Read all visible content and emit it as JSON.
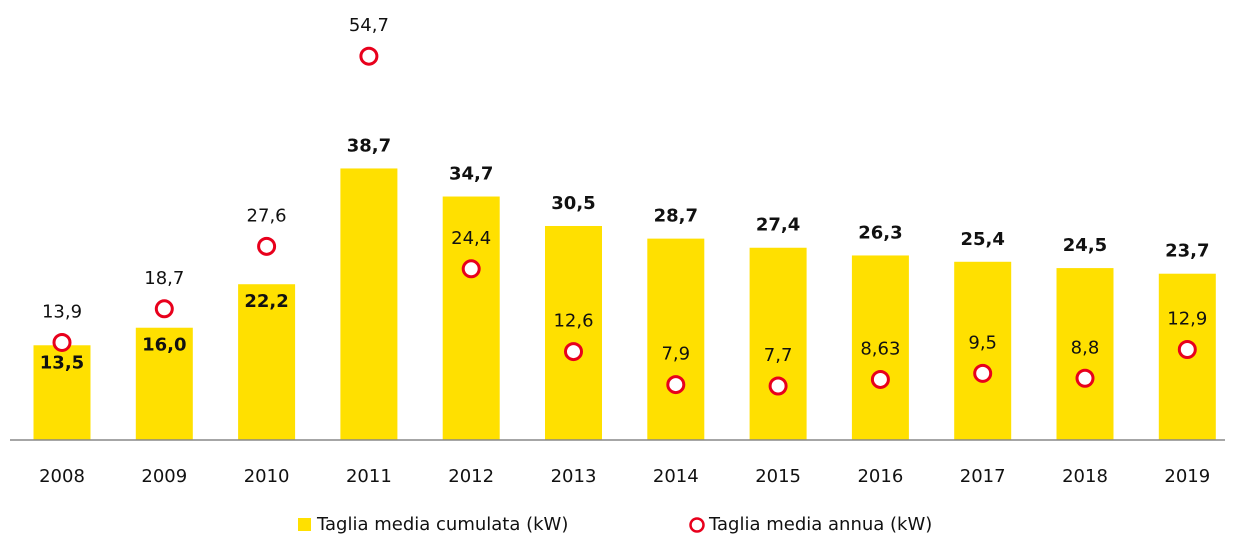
{
  "chart_data": {
    "type": "bar",
    "categories": [
      "2008",
      "2009",
      "2010",
      "2011",
      "2012",
      "2013",
      "2014",
      "2015",
      "2016",
      "2017",
      "2018",
      "2019"
    ],
    "series": [
      {
        "name": "Taglia media cumulata (kW)",
        "type": "bar",
        "color": "#FFE000",
        "values": [
          13.5,
          16.0,
          22.2,
          38.7,
          34.7,
          30.5,
          28.7,
          27.4,
          26.3,
          25.4,
          24.5,
          23.7
        ],
        "value_labels": [
          "13,5",
          "16,0",
          "22,2",
          "38,7",
          "34,7",
          "30,5",
          "28,7",
          "27,4",
          "26,3",
          "25,4",
          "24,5",
          "23,7"
        ]
      },
      {
        "name": "Taglia media annua (kW)",
        "type": "scatter",
        "color": "#E8001C",
        "values": [
          13.9,
          18.7,
          27.6,
          54.7,
          24.4,
          12.6,
          7.9,
          7.7,
          8.63,
          9.5,
          8.8,
          12.9
        ],
        "value_labels": [
          "13,9",
          "18,7",
          "27,6",
          "54,7",
          "24,4",
          "12,6",
          "7,9",
          "7,7",
          "8,63",
          "9,5",
          "8,8",
          "12,9"
        ]
      }
    ],
    "ylim": [
      0,
      60
    ],
    "legend": "bottom"
  }
}
